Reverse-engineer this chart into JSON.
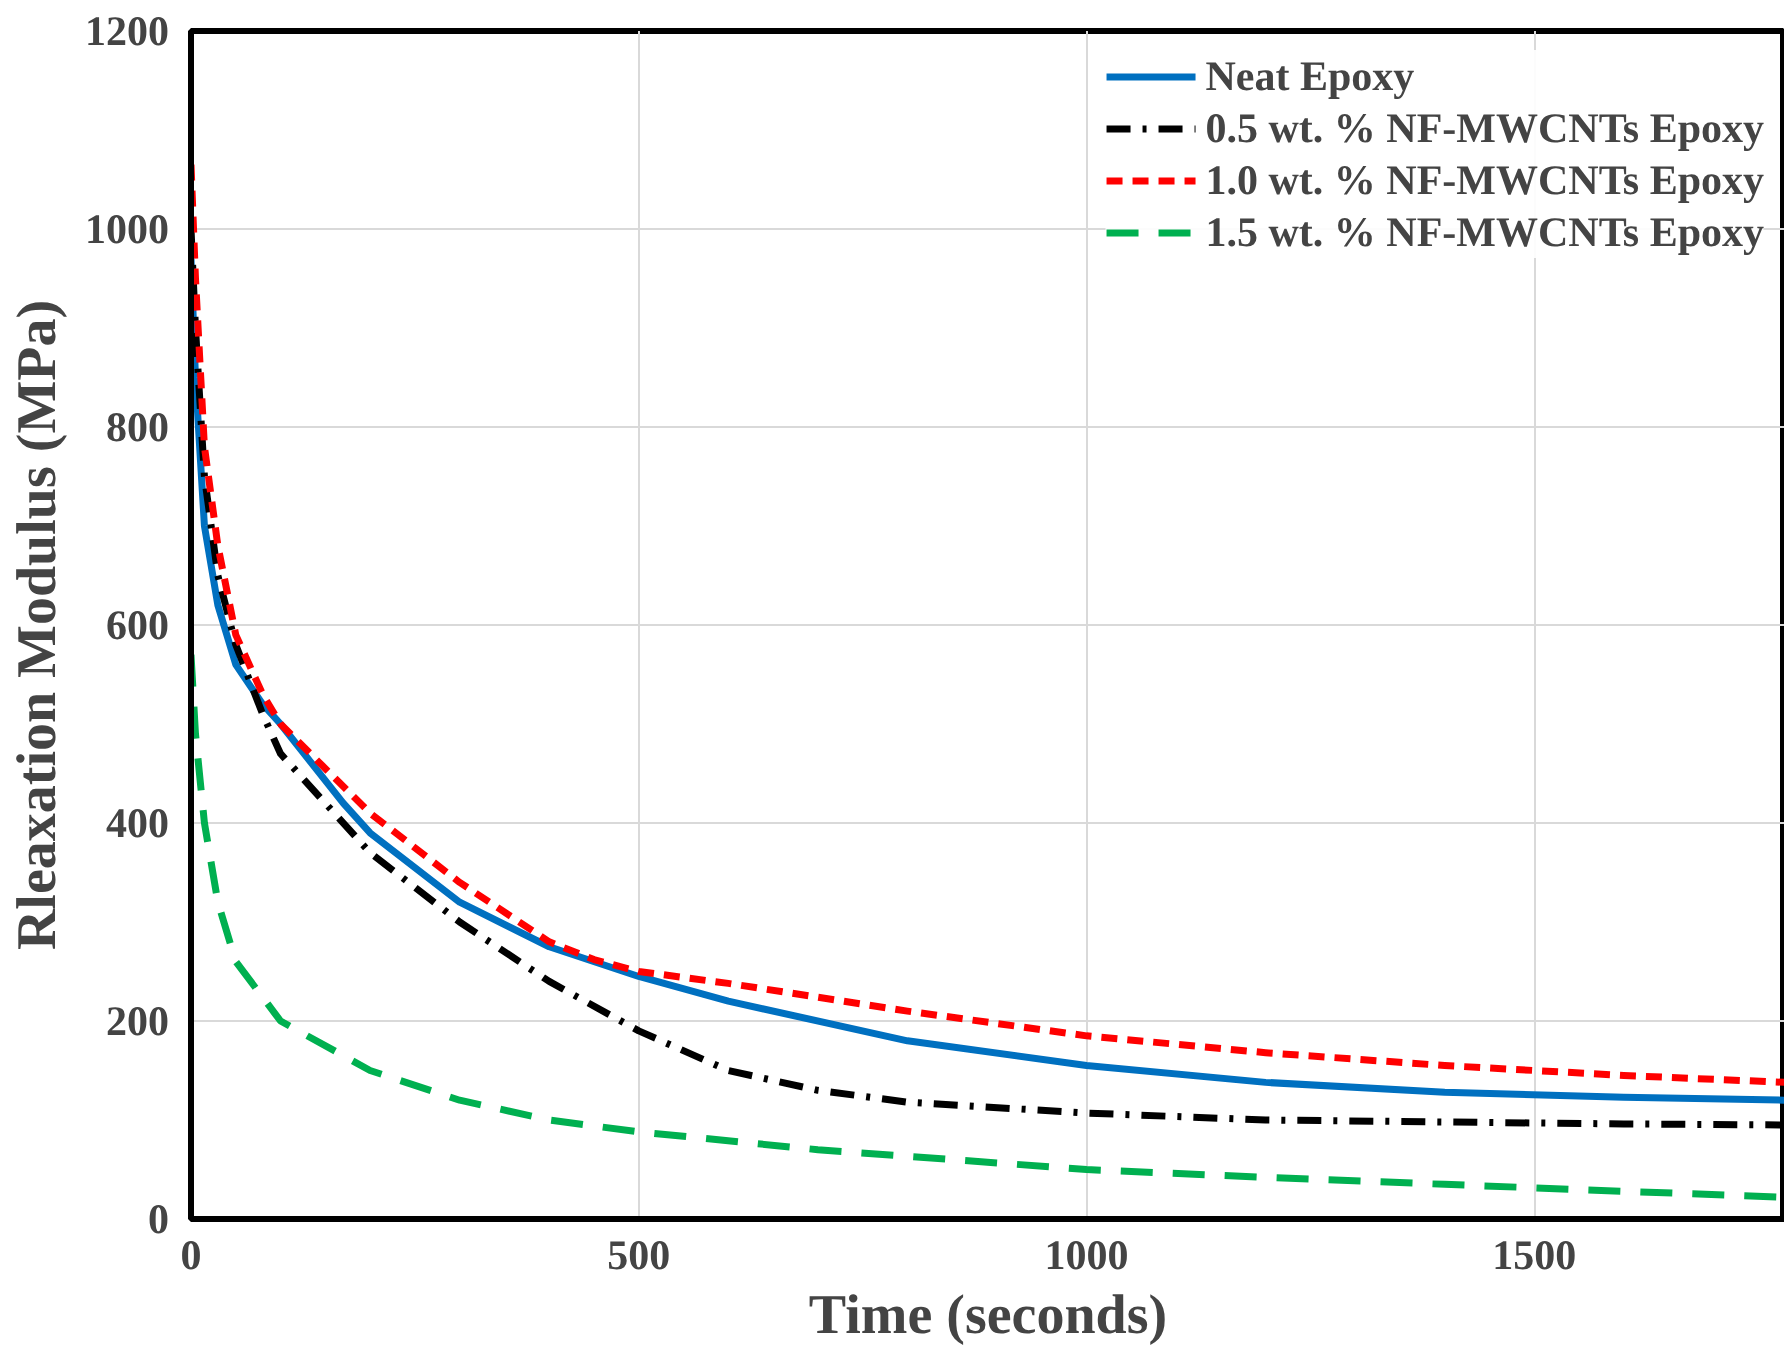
{
  "chart_data": {
    "type": "line",
    "xlabel": "Time (seconds)",
    "ylabel": "Rleaxation Modulus (MPa)",
    "xlim": [
      0,
      1780
    ],
    "ylim": [
      0,
      1200
    ],
    "xticks": [
      0,
      500,
      1000,
      1500
    ],
    "yticks": [
      0,
      200,
      400,
      600,
      800,
      1000,
      1200
    ],
    "grid": true,
    "legend": "top right",
    "marker": "none",
    "series": [
      {
        "name": "Neat Epoxy",
        "color": "#0070c0",
        "line_style": "solid",
        "x": [
          0,
          5,
          15,
          30,
          50,
          80,
          100,
          170,
          200,
          300,
          400,
          500,
          600,
          800,
          1000,
          1200,
          1400,
          1600,
          1780
        ],
        "values": [
          970,
          850,
          700,
          620,
          560,
          520,
          500,
          420,
          390,
          320,
          275,
          245,
          220,
          180,
          155,
          138,
          128,
          123,
          120
        ]
      },
      {
        "name": "0.5 wt. % NF-MWCNTs Epoxy",
        "color": "#000000",
        "line_style": "dashdot",
        "x": [
          0,
          5,
          15,
          30,
          50,
          80,
          100,
          200,
          300,
          400,
          500,
          600,
          700,
          800,
          1000,
          1200,
          1400,
          1600,
          1780
        ],
        "values": [
          1000,
          900,
          750,
          650,
          580,
          510,
          470,
          370,
          300,
          240,
          190,
          150,
          130,
          118,
          107,
          100,
          98,
          96,
          95
        ]
      },
      {
        "name": "1.0 wt. % NF-MWCNTs Epoxy",
        "color": "#ff0000",
        "line_style": "dashed",
        "x": [
          0,
          5,
          15,
          30,
          50,
          80,
          100,
          200,
          300,
          400,
          450,
          500,
          600,
          800,
          1000,
          1200,
          1400,
          1600,
          1780
        ],
        "values": [
          1065,
          950,
          780,
          680,
          590,
          530,
          500,
          410,
          340,
          280,
          262,
          250,
          238,
          210,
          185,
          168,
          155,
          145,
          138
        ]
      },
      {
        "name": "1.5 wt. % NF-MWCNTs Epoxy",
        "color": "#00b050",
        "line_style": "longdash",
        "x": [
          0,
          5,
          15,
          30,
          50,
          100,
          200,
          300,
          400,
          500,
          700,
          1000,
          1200,
          1400,
          1600,
          1780
        ],
        "values": [
          570,
          490,
          400,
          320,
          260,
          200,
          150,
          120,
          100,
          88,
          70,
          50,
          42,
          35,
          28,
          22
        ]
      }
    ]
  }
}
